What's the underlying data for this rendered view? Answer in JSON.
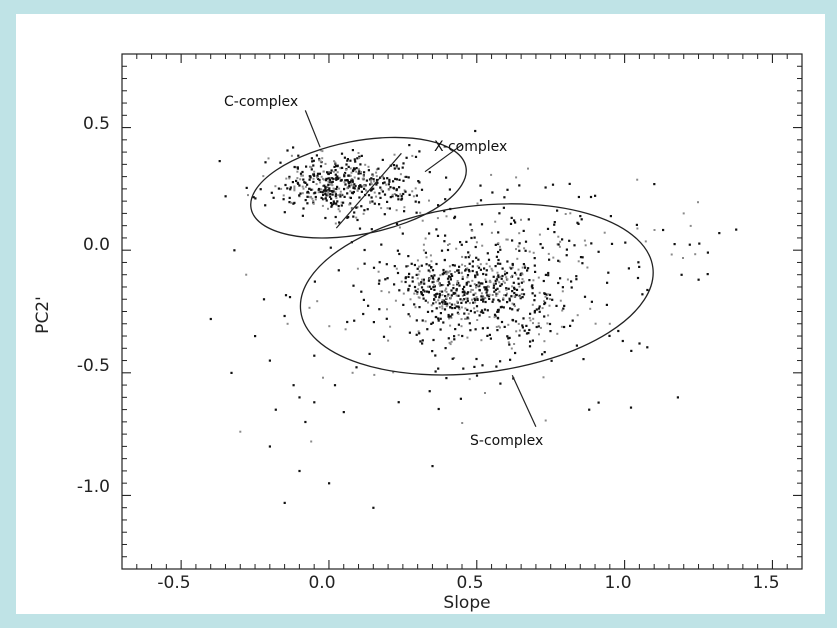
{
  "chart_data": {
    "type": "scatter",
    "xlabel": "Slope",
    "ylabel": "PC2'",
    "xlim": [
      -0.7,
      1.6
    ],
    "ylim": [
      -1.3,
      0.8
    ],
    "grid": false,
    "legend": "none",
    "x_ticks": [
      "-0.5",
      "0.0",
      "0.5",
      "1.0",
      "1.5"
    ],
    "y_ticks": [
      "0.5",
      "0.0",
      "-0.5",
      "-1.0"
    ],
    "x_tick_values": [
      -0.5,
      0.0,
      0.5,
      1.0,
      1.5
    ],
    "y_tick_values": [
      0.5,
      0.0,
      -0.5,
      -1.0
    ],
    "annotations": [
      "C-complex",
      "X-complex",
      "S-complex"
    ],
    "point_color": "#111111",
    "point_color_light": "#8a8a8a",
    "clusters": [
      {
        "center": [
          0.05,
          0.27
        ],
        "spread": [
          0.12,
          0.06
        ],
        "count": 480
      },
      {
        "center": [
          0.48,
          -0.17
        ],
        "spread": [
          0.13,
          0.08
        ],
        "count": 420
      },
      {
        "center": [
          0.5,
          -0.15
        ],
        "spread": [
          0.26,
          0.18
        ],
        "count": 380
      },
      {
        "center": [
          0.7,
          0.1
        ],
        "spread": [
          0.28,
          0.12
        ],
        "count": 90
      }
    ],
    "sparse_points": [
      [
        -0.35,
        0.22
      ],
      [
        -0.32,
        0.0
      ],
      [
        -0.33,
        -0.5
      ],
      [
        -0.2,
        -0.8
      ],
      [
        -0.15,
        -1.03
      ],
      [
        -0.12,
        -0.55
      ],
      [
        -0.1,
        -0.6
      ],
      [
        -0.08,
        -0.7
      ],
      [
        -0.05,
        -0.62
      ],
      [
        -0.02,
        -0.52
      ],
      [
        0.02,
        -0.55
      ],
      [
        -0.22,
        -0.2
      ],
      [
        -0.25,
        -0.35
      ],
      [
        -0.4,
        -0.28
      ],
      [
        -0.06,
        -0.78
      ],
      [
        -0.1,
        -0.9
      ],
      [
        -0.18,
        -0.65
      ],
      [
        0.08,
        -0.5
      ],
      [
        0.05,
        -0.66
      ],
      [
        -0.3,
        -0.74
      ],
      [
        0.15,
        -1.05
      ],
      [
        0.35,
        -0.88
      ],
      [
        1.18,
        -0.6
      ],
      [
        1.2,
        0.15
      ],
      [
        1.32,
        0.07
      ],
      [
        1.25,
        -0.12
      ],
      [
        1.1,
        0.27
      ],
      [
        0.95,
        -0.3
      ],
      [
        1.05,
        -0.38
      ],
      [
        0.88,
        -0.65
      ],
      [
        -0.05,
        -0.43
      ],
      [
        -0.2,
        -0.45
      ],
      [
        -0.28,
        -0.1
      ],
      [
        0.0,
        -0.95
      ],
      [
        -0.14,
        -0.3
      ]
    ]
  },
  "ellipses": [
    {
      "name": "C/X complex boundary",
      "center": [
        0.1,
        0.255
      ],
      "semi_axes": [
        0.37,
        0.19
      ],
      "angle_deg": -11
    },
    {
      "name": "S-complex boundary",
      "center": [
        0.5,
        -0.16
      ],
      "semi_axes": [
        0.6,
        0.34
      ],
      "angle_deg": -7
    }
  ]
}
